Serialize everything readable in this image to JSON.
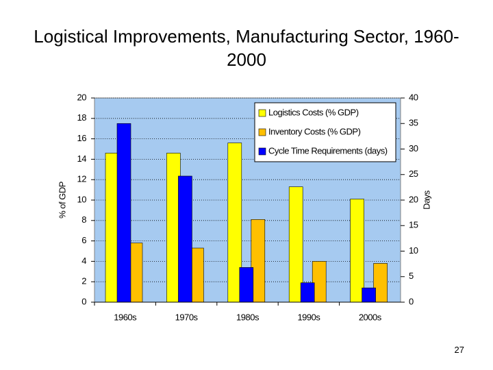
{
  "chart_data": {
    "type": "bar",
    "title": "Logistical Improvements, Manufacturing Sector, 1960-2000",
    "categories": [
      "1960s",
      "1970s",
      "1980s",
      "1990s",
      "2000s"
    ],
    "series": [
      {
        "name": "Logistics Costs (% GDP)",
        "color": "#ffff00",
        "values": [
          14.6,
          14.6,
          15.6,
          11.3,
          10.1
        ]
      },
      {
        "name": "Inventory Costs (% GDP)",
        "color": "#ffc000",
        "values": [
          5.8,
          5.3,
          8.1,
          4.0,
          3.8
        ]
      },
      {
        "name": "Cycle Time Requirements (days)",
        "color": "#0000ff",
        "values": [
          35,
          24.7,
          6.8,
          3.8,
          2.8
        ],
        "axis": "y2"
      }
    ],
    "ylabel": "% of GDP",
    "y2label": "Days",
    "ylim": [
      0,
      20
    ],
    "yticks": [
      0,
      2,
      4,
      6,
      8,
      10,
      12,
      14,
      16,
      18,
      20
    ],
    "y2lim": [
      0,
      40
    ],
    "y2ticks": [
      0,
      5,
      10,
      15,
      20,
      25,
      30,
      35,
      40
    ],
    "grid": true,
    "legend": "upper right",
    "plot_background": "#a6caf0"
  },
  "slide_number": "27"
}
